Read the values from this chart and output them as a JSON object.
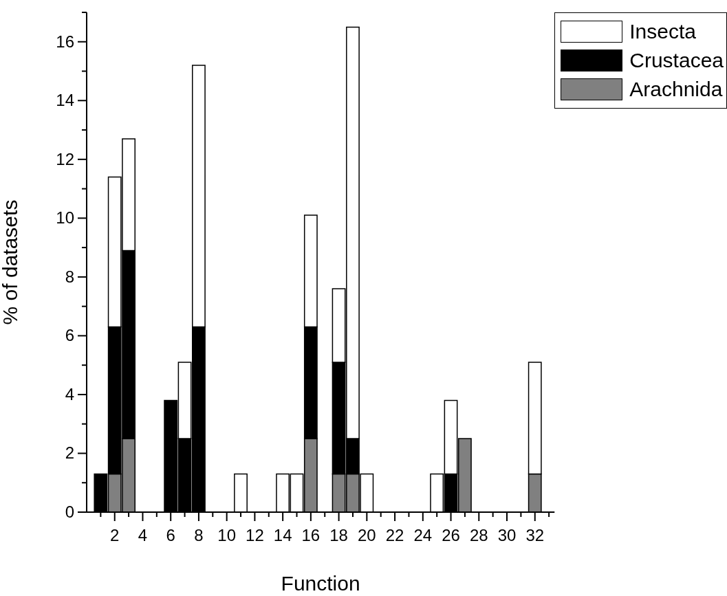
{
  "chart_data": {
    "type": "bar",
    "stacked": true,
    "xlabel": "Function",
    "ylabel": "% of datasets",
    "x": [
      1,
      2,
      3,
      6,
      7,
      8,
      11,
      14,
      15,
      16,
      18,
      19,
      20,
      25,
      26,
      27,
      32
    ],
    "series": [
      {
        "name": "Arachnida",
        "color": "#808080",
        "values": [
          null,
          1.3,
          2.5,
          null,
          null,
          null,
          null,
          null,
          null,
          2.5,
          1.3,
          1.3,
          null,
          null,
          null,
          2.5,
          1.3
        ]
      },
      {
        "name": "Crustacea",
        "color": "#000000",
        "values": [
          1.3,
          5.0,
          6.4,
          3.8,
          2.5,
          6.3,
          null,
          null,
          null,
          3.8,
          3.8,
          1.2,
          null,
          null,
          1.3,
          null,
          null
        ]
      },
      {
        "name": "Insecta",
        "color": "#ffffff",
        "values": [
          null,
          5.1,
          3.8,
          null,
          2.6,
          8.9,
          1.3,
          1.3,
          1.3,
          3.8,
          2.5,
          14.0,
          1.3,
          1.3,
          2.5,
          null,
          3.8
        ]
      }
    ],
    "xlim": [
      0,
      33.4
    ],
    "xticks": [
      {
        "value": 1,
        "label": null
      },
      2,
      {
        "value": 3,
        "label": null
      },
      4,
      {
        "value": 5,
        "label": null
      },
      6,
      {
        "value": 7,
        "label": null
      },
      8,
      {
        "value": 9,
        "label": null
      },
      10,
      {
        "value": 11,
        "label": null
      },
      12,
      {
        "value": 13,
        "label": null
      },
      14,
      {
        "value": 15,
        "label": null
      },
      16,
      {
        "value": 17,
        "label": null
      },
      18,
      {
        "value": 19,
        "label": null
      },
      20,
      {
        "value": 21,
        "label": null
      },
      22,
      {
        "value": 23,
        "label": null
      },
      24,
      {
        "value": 25,
        "label": null
      },
      26,
      {
        "value": 27,
        "label": null
      },
      28,
      {
        "value": 29,
        "label": null
      },
      30,
      {
        "value": 31,
        "label": null
      },
      32,
      {
        "value": 33,
        "label": null
      }
    ],
    "ylim": [
      0,
      17
    ],
    "yticks": [
      0,
      {
        "value": 1,
        "label": null
      },
      2,
      {
        "value": 3,
        "label": null
      },
      4,
      {
        "value": 5,
        "label": null
      },
      6,
      {
        "value": 7,
        "label": null
      },
      8,
      {
        "value": 9,
        "label": null
      },
      10,
      {
        "value": 11,
        "label": null
      },
      12,
      {
        "value": 13,
        "label": null
      },
      14,
      {
        "value": 15,
        "label": null
      },
      16,
      {
        "value": 17,
        "label": null
      }
    ],
    "grid": false,
    "legend": "top right"
  }
}
